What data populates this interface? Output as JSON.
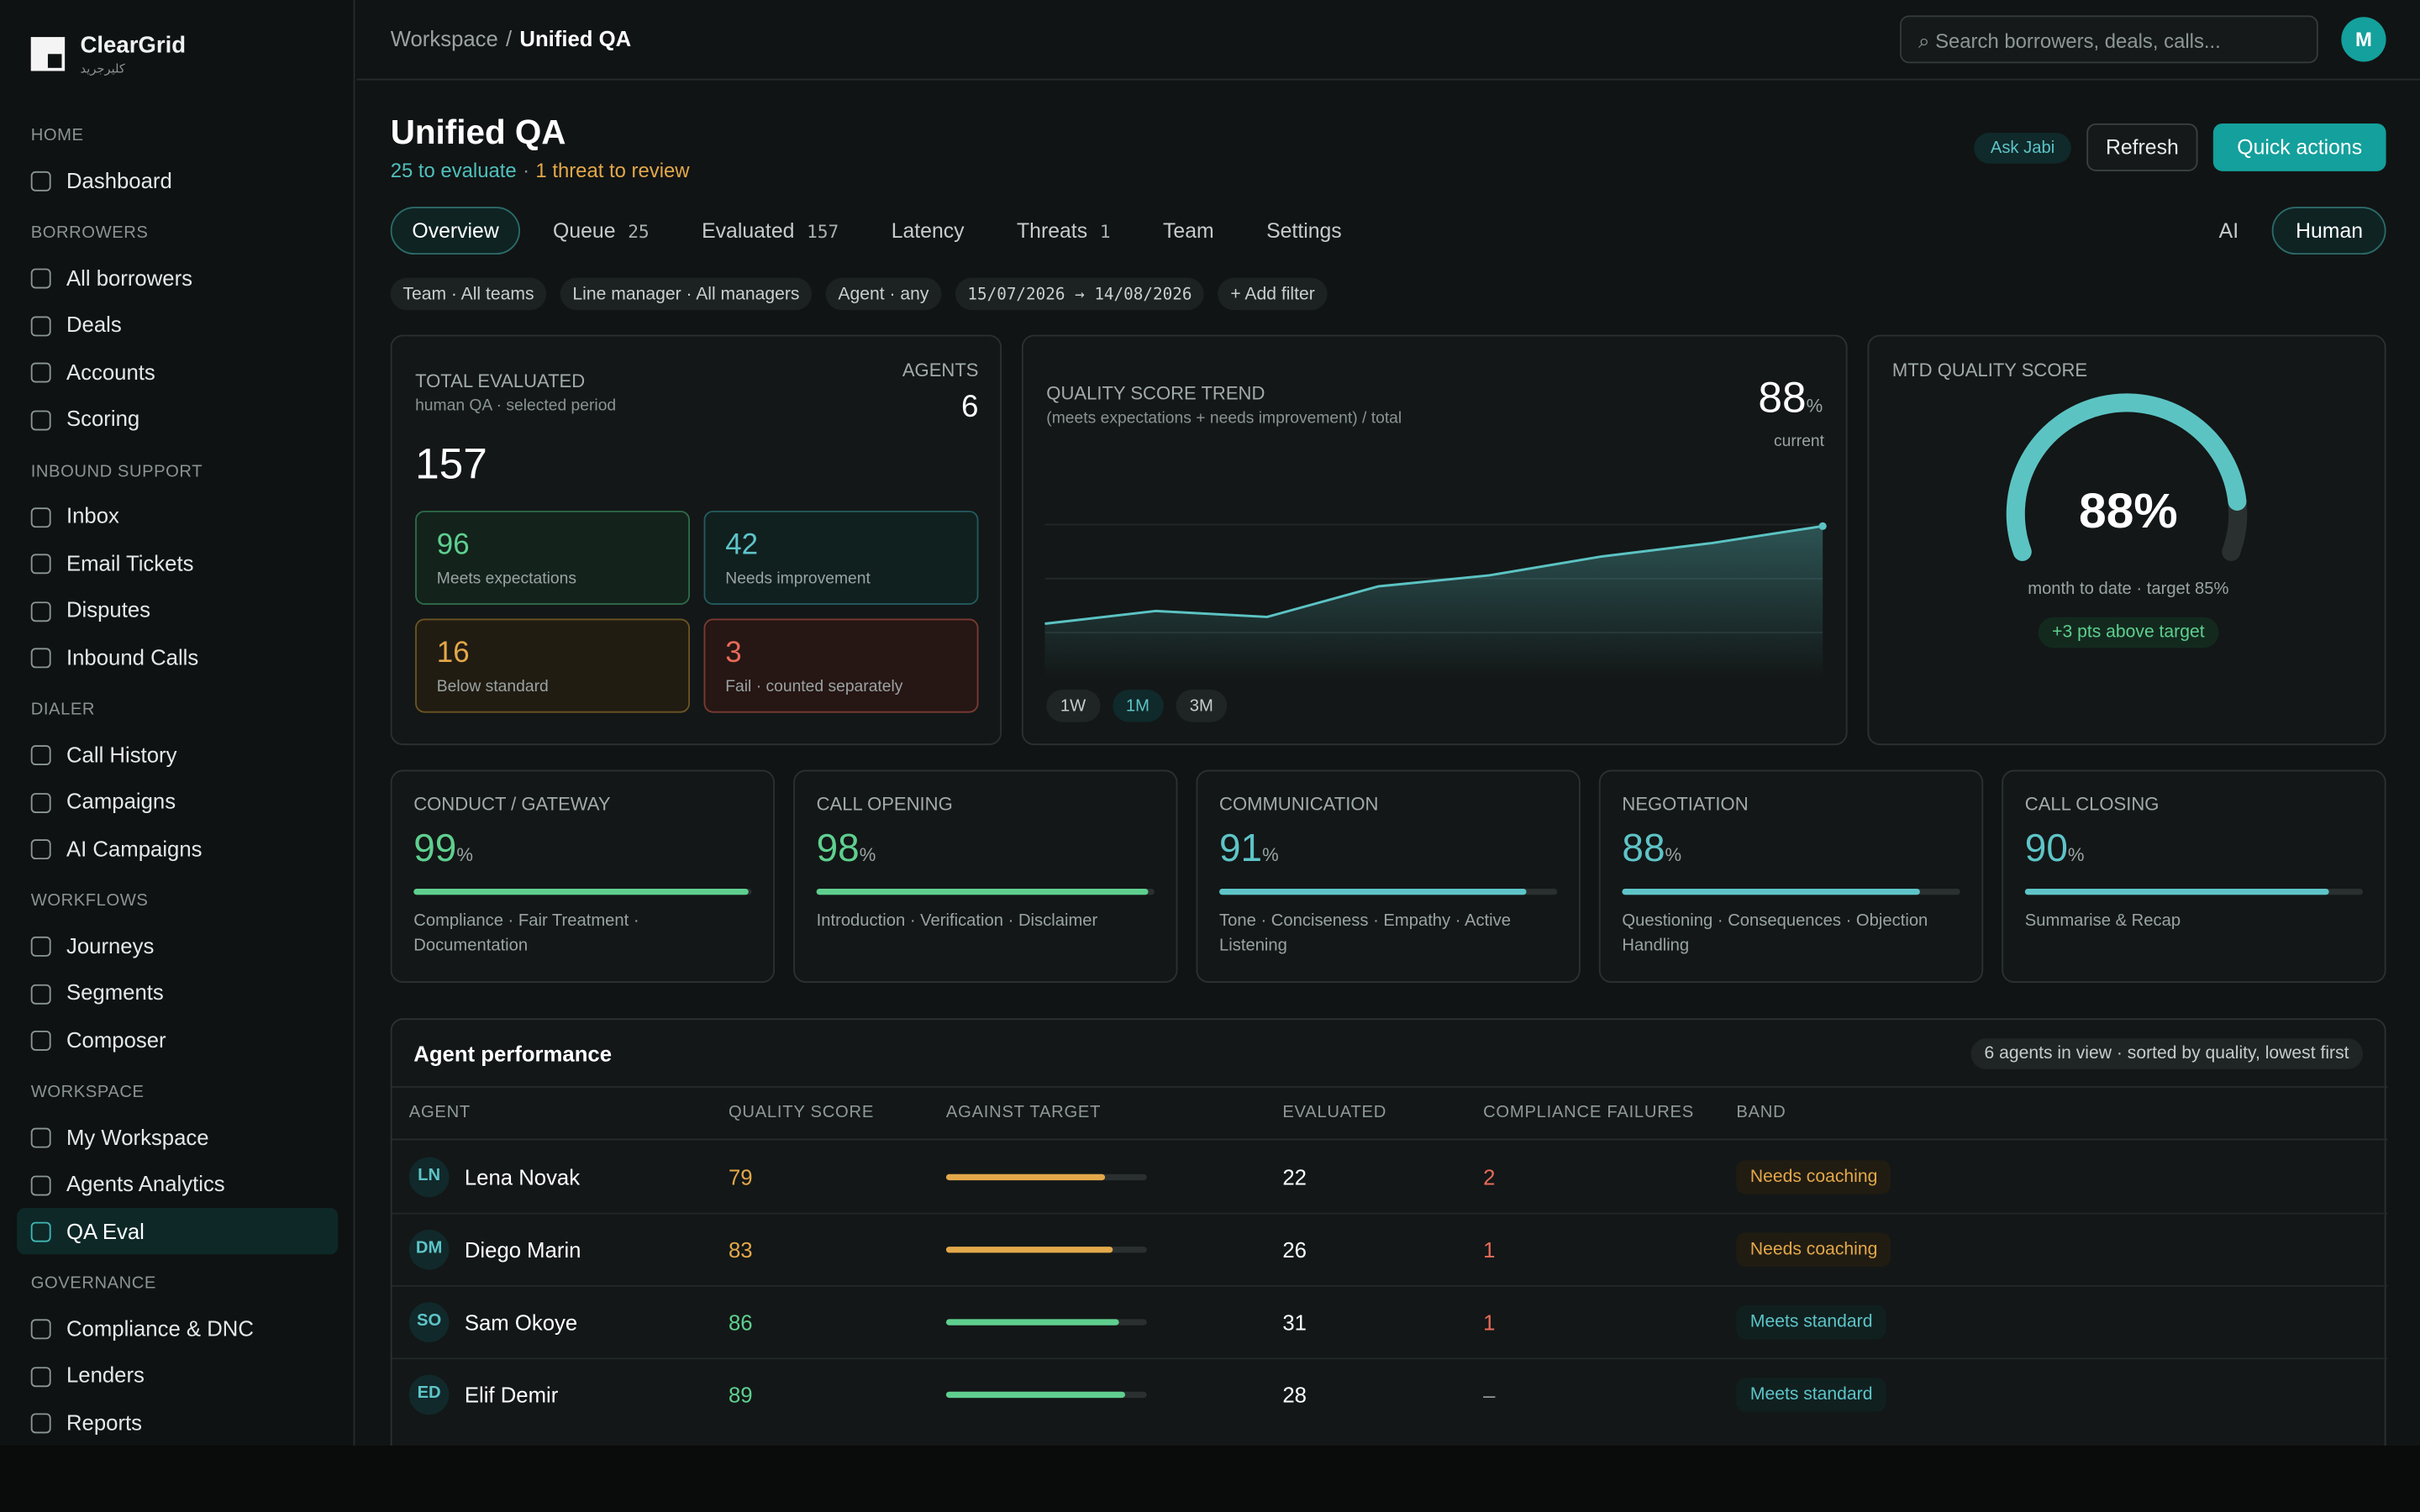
{
  "sidebar": {
    "brand": "ClearGrid",
    "brand_sub": "كليرجريد",
    "sections": [
      {
        "title": "HOME",
        "items": [
          {
            "label": "Dashboard"
          }
        ]
      },
      {
        "title": "BORROWERS",
        "items": [
          {
            "label": "All borrowers"
          },
          {
            "label": "Deals"
          },
          {
            "label": "Accounts"
          },
          {
            "label": "Scoring"
          }
        ]
      },
      {
        "title": "INBOUND SUPPORT",
        "items": [
          {
            "label": "Inbox"
          },
          {
            "label": "Email Tickets"
          },
          {
            "label": "Disputes"
          },
          {
            "label": "Inbound Calls"
          }
        ]
      },
      {
        "title": "DIALER",
        "items": [
          {
            "label": "Call History"
          },
          {
            "label": "Campaigns"
          },
          {
            "label": "AI Campaigns"
          }
        ]
      },
      {
        "title": "WORKFLOWS",
        "items": [
          {
            "label": "Journeys"
          },
          {
            "label": "Segments"
          },
          {
            "label": "Composer"
          }
        ]
      },
      {
        "title": "WORKSPACE",
        "items": [
          {
            "label": "My Workspace"
          },
          {
            "label": "Agents Analytics"
          },
          {
            "label": "QA Eval",
            "active": true
          }
        ]
      },
      {
        "title": "GOVERNANCE",
        "items": [
          {
            "label": "Compliance & DNC"
          },
          {
            "label": "Lenders"
          },
          {
            "label": "Reports"
          }
        ]
      }
    ]
  },
  "topbar": {
    "breadcrumb": {
      "parent": "Workspace",
      "separator": "/",
      "current": "Unified QA"
    },
    "search": "⌕ Search borrowers, deals, calls...",
    "avatar": "M"
  },
  "header": {
    "title": "Unified QA",
    "subtitle": {
      "evaluate": "25 to evaluate",
      "separator": "·",
      "threats": "1 threat to review"
    },
    "badge": "Ask Jabi",
    "buttons": [
      "Refresh",
      "Quick actions"
    ]
  },
  "tabs": [
    {
      "label": "Overview",
      "active": true
    },
    {
      "label": "Queue",
      "count": 25
    },
    {
      "label": "Evaluated",
      "count": 157
    },
    {
      "label": "Latency"
    },
    {
      "label": "Threats",
      "count": 1
    },
    {
      "label": "Team"
    },
    {
      "label": "Settings"
    }
  ],
  "mode": [
    {
      "label": "AI"
    },
    {
      "label": "Human",
      "active": true
    }
  ],
  "filters": [
    "Team · All teams",
    "Line manager · All managers",
    "Agent · any",
    "15/07/2026 → 14/08/2026",
    "+ Add filter"
  ],
  "total_card": {
    "label": "TOTAL EVALUATED",
    "sub": "human QA · selected period",
    "total": 157,
    "agents_label": "AGENTS",
    "agents": 6,
    "breakdown": [
      {
        "value": 96,
        "label": "Meets expectations",
        "tone": "green"
      },
      {
        "value": 42,
        "label": "Needs improvement",
        "tone": "teal"
      },
      {
        "value": 16,
        "label": "Below standard",
        "tone": "amber"
      },
      {
        "value": 3,
        "label": "Fail · counted separately",
        "tone": "red"
      }
    ]
  },
  "trend": {
    "title": "QUALITY SCORE TREND",
    "sub": "(meets expectations + needs improvement) / total",
    "current": 88,
    "unit": "%",
    "current_label": "current",
    "type": "area",
    "values": [
      76.5,
      78,
      77.3,
      80.9,
      82.2,
      84.4,
      86,
      88
    ],
    "ylim": [
      70,
      90
    ],
    "color": "#5cc3c3",
    "ranges": [
      {
        "label": "1W"
      },
      {
        "label": "1M",
        "active": true
      },
      {
        "label": "3M"
      }
    ]
  },
  "gauge": {
    "label": "MTD QUALITY SCORE",
    "value": 88,
    "unit": "%",
    "sub": "month to date · target 85%",
    "badge": "+3 pts above target",
    "color": "#5cc3c3"
  },
  "categories": {
    "unit": "%",
    "items": [
      {
        "name": "CONDUCT / GATEWAY",
        "value": 99,
        "tone": "green",
        "desc": "Compliance · Fair Treatment · Documentation"
      },
      {
        "name": "CALL OPENING",
        "value": 98,
        "tone": "green",
        "desc": "Introduction · Verification · Disclaimer"
      },
      {
        "name": "COMMUNICATION",
        "value": 91,
        "tone": "teal",
        "desc": "Tone · Conciseness · Empathy · Active Listening"
      },
      {
        "name": "NEGOTIATION",
        "value": 88,
        "tone": "teal",
        "desc": "Questioning · Consequences · Objection Handling"
      },
      {
        "name": "CALL CLOSING",
        "value": 90,
        "tone": "teal",
        "desc": "Summarise & Recap"
      }
    ]
  },
  "table": {
    "title": "Agent performance",
    "note": "6 agents in view · sorted by quality, lowest first",
    "columns": [
      "AGENT",
      "QUALITY SCORE",
      "AGAINST TARGET",
      "EVALUATED",
      "COMPLIANCE FAILURES",
      "BAND"
    ],
    "rows": [
      {
        "initials": "LN",
        "name": "Lena Novak",
        "score": 79,
        "evaluated": 22,
        "failures": 2,
        "band": "Needs coaching",
        "tone": "amber"
      },
      {
        "initials": "DM",
        "name": "Diego Marin",
        "score": 83,
        "evaluated": 26,
        "failures": 1,
        "band": "Needs coaching",
        "tone": "amber"
      },
      {
        "initials": "SO",
        "name": "Sam Okoye",
        "score": 86,
        "evaluated": 31,
        "failures": 1,
        "band": "Meets standard",
        "tone": "green"
      },
      {
        "initials": "ED",
        "name": "Elif Demir",
        "score": 89,
        "evaluated": 28,
        "failures": "–",
        "band": "Meets standard",
        "tone": "green"
      }
    ]
  }
}
